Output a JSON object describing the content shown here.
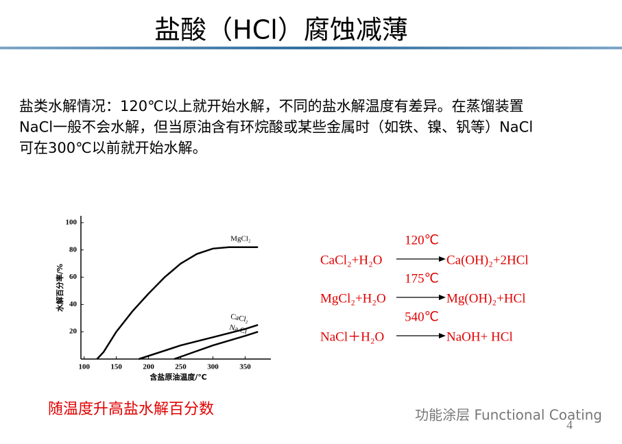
{
  "slide": {
    "title": "盐酸（HCl）腐蚀减薄",
    "paragraph": [
      "盐类水解情况：120℃以上就开始水解，不同的盐水解温度有差异。在蒸馏装置",
      "NaCl一般不会水解，但当原油含有环烷酸或某些金属时（如铁、镍、钒等）NaCl",
      "可在300℃以前就开始水解。"
    ],
    "caption": "随温度升高盐水解百分数",
    "equations": [
      {
        "reactants": "CaCl₂+H₂O",
        "condition": "120℃",
        "products": "Ca(OH)₂+2HCl"
      },
      {
        "reactants": "MgCl₂+H₂O",
        "condition": "175℃",
        "products": "Mg(OH)₂+HCl"
      },
      {
        "reactants": "NaCl＋H₂O",
        "condition": "540℃",
        "products": "NaOH+ HCl"
      }
    ],
    "watermark": "功能涂层 Functional Coating",
    "page_number": "4"
  },
  "chart_data": {
    "type": "line",
    "x_label": "含盐原油温度/℃",
    "y_label": "水解百分率/%",
    "xlim": [
      95,
      390
    ],
    "xticks": [
      100,
      150,
      200,
      250,
      300,
      350
    ],
    "ylim": [
      0,
      105
    ],
    "yticks": [
      20,
      40,
      60,
      80,
      100
    ],
    "series": [
      {
        "name": "MgCl₂",
        "color": "#000000",
        "x": [
          120,
          130,
          150,
          175,
          200,
          225,
          250,
          275,
          300,
          325,
          350,
          370
        ],
        "values": [
          0,
          5,
          20,
          35,
          48,
          60,
          70,
          77,
          81,
          82,
          82,
          82
        ]
      },
      {
        "name": "CaCl₂",
        "color": "#000000",
        "x": [
          185,
          250,
          300,
          350,
          370
        ],
        "values": [
          0,
          10,
          16,
          22,
          25
        ]
      },
      {
        "name": "Na Cl",
        "color": "#000000",
        "x": [
          240,
          270,
          300,
          350,
          370
        ],
        "values": [
          0,
          5,
          10,
          17,
          20
        ]
      }
    ]
  }
}
